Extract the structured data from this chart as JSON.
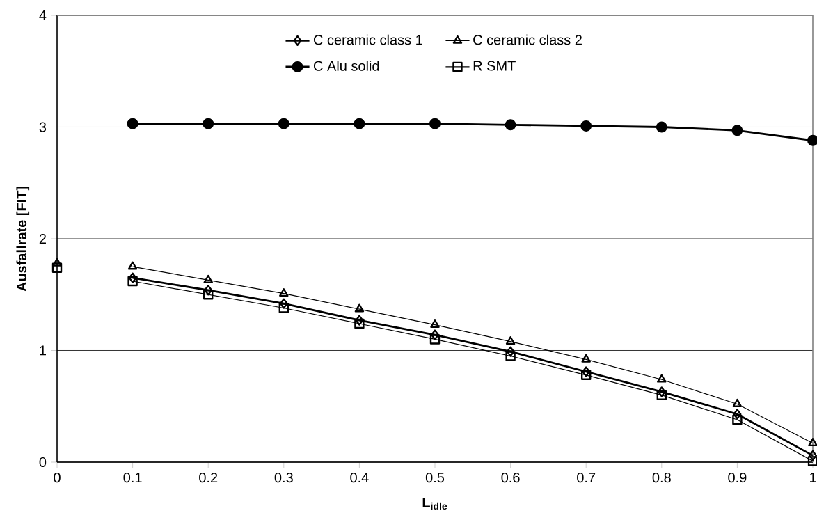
{
  "chart_data": {
    "type": "line",
    "xlabel": "L$_{idle}$",
    "ylabel": "Ausfallrate [FIT]",
    "x": [
      0.1,
      0.2,
      0.3,
      0.4,
      0.5,
      0.6,
      0.7,
      0.8,
      0.9,
      1
    ],
    "series": [
      {
        "name": "C ceramic class 1",
        "color": "#000000",
        "marker": "diamond",
        "values": [
          1.65,
          1.54,
          1.42,
          1.27,
          1.14,
          0.99,
          0.81,
          0.63,
          0.43,
          0.06
        ]
      },
      {
        "name": "C ceramic class 2",
        "color": "#000000",
        "marker": "triangle",
        "values": [
          1.75,
          1.63,
          1.51,
          1.37,
          1.23,
          1.08,
          0.92,
          0.74,
          0.52,
          0.17
        ]
      },
      {
        "name": "C Alu solid",
        "color": "#000000",
        "marker": "circle",
        "values": [
          3.03,
          3.03,
          3.03,
          3.03,
          3.03,
          3.02,
          3.01,
          3.0,
          2.97,
          2.88
        ]
      },
      {
        "name": "R SMT",
        "color": "#000000",
        "marker": "square",
        "values": [
          1.62,
          1.5,
          1.38,
          1.24,
          1.1,
          0.95,
          0.78,
          0.6,
          0.38,
          0.01
        ]
      },
      {
        "type": "scatter",
        "color": "#000000",
        "marker": "triangle",
        "x": [
          0
        ],
        "values": [
          1.78
        ]
      },
      {
        "type": "scatter",
        "color": "#000000",
        "marker": "square",
        "x": [
          0
        ],
        "values": [
          1.74
        ]
      }
    ],
    "xlim": [
      0,
      1
    ],
    "ylim": [
      0,
      4
    ],
    "xticks": [
      0,
      0.1,
      0.2,
      0.3,
      0.4,
      0.5,
      0.6,
      0.7,
      0.8,
      0.9,
      1
    ],
    "yticks": [
      0,
      1,
      2,
      3,
      4
    ],
    "grid": "y",
    "legend": "top"
  }
}
